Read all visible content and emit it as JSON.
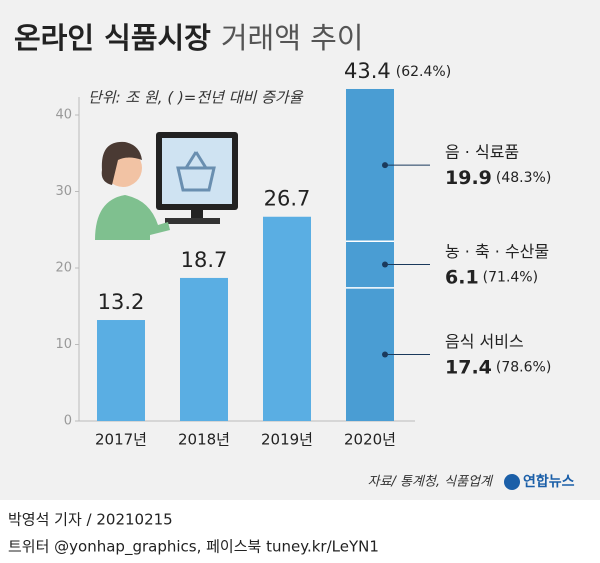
{
  "chart_data": {
    "type": "bar",
    "title": "온라인 식품시장",
    "subtitle": "거래액 추이",
    "unit_note": "단위: 조 원, ( )=전년 대비 증가율",
    "categories": [
      "2017년",
      "2018년",
      "2019년",
      "2020년"
    ],
    "values": [
      13.2,
      18.7,
      26.7,
      43.4
    ],
    "color": "#5aaee3",
    "last_growth_label": "(62.4%)",
    "breakdown": [
      {
        "name": "음식 서비스",
        "value": 17.4,
        "growth": "(78.6%)",
        "color": "#4a9dd3"
      },
      {
        "name": "농 · 축 · 수산물",
        "value": 6.1,
        "growth": "(71.4%)",
        "color": "#4a9dd3"
      },
      {
        "name": "음 · 식료품",
        "value": 19.9,
        "growth": "(48.3%)",
        "color": "#4a9dd3"
      }
    ],
    "ylim": [
      0,
      40
    ],
    "yticks": [
      0,
      10,
      20,
      30,
      40
    ],
    "source": "자료/ 통계청, 식품업계",
    "logo": "연합뉴스"
  },
  "footer": {
    "byline": "박영석 기자 / 20210215",
    "social": "트위터 @yonhap_graphics, 페이스북 tuney.kr/LeYN1"
  }
}
